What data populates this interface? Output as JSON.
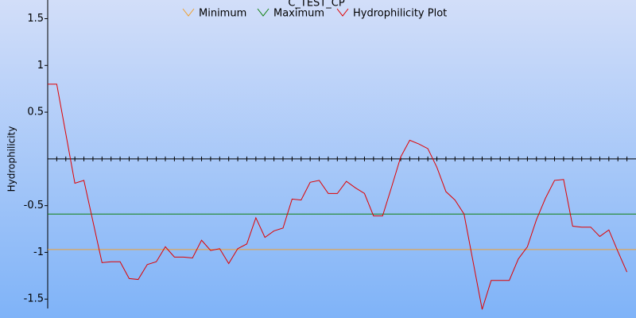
{
  "chart_data": {
    "type": "line",
    "title": "C_TEST_CP",
    "y_label": "Hydrophilicity",
    "ylim": [
      -1.6,
      1.7
    ],
    "yticks": [
      -1.5,
      -1,
      -0.5,
      0.5,
      1,
      1.5
    ],
    "series": [
      {
        "name": "Minimum",
        "color": "#f0a030",
        "value": -0.97
      },
      {
        "name": "Maximum",
        "color": "#108010",
        "value": -0.59
      },
      {
        "name": "Hydrophilicity Plot",
        "color": "#e00000",
        "values": [
          0.8,
          0.8,
          0.27,
          -0.26,
          -0.23,
          -0.67,
          -1.11,
          -1.1,
          -1.1,
          -1.28,
          -1.29,
          -1.13,
          -1.1,
          -0.94,
          -1.05,
          -1.05,
          -1.06,
          -0.87,
          -0.98,
          -0.96,
          -1.12,
          -0.96,
          -0.91,
          -0.63,
          -0.84,
          -0.77,
          -0.74,
          -0.43,
          -0.44,
          -0.25,
          -0.23,
          -0.37,
          -0.37,
          -0.24,
          -0.31,
          -0.37,
          -0.61,
          -0.61,
          -0.3,
          0.02,
          0.2,
          0.16,
          0.11,
          -0.09,
          -0.35,
          -0.44,
          -0.59,
          -1.1,
          -1.61,
          -1.3,
          -1.3,
          -1.3,
          -1.07,
          -0.94,
          -0.65,
          -0.42,
          -0.23,
          -0.22,
          -0.72,
          -0.73,
          -0.73,
          -0.83,
          -0.76,
          -0.99,
          -1.21
        ]
      }
    ]
  }
}
